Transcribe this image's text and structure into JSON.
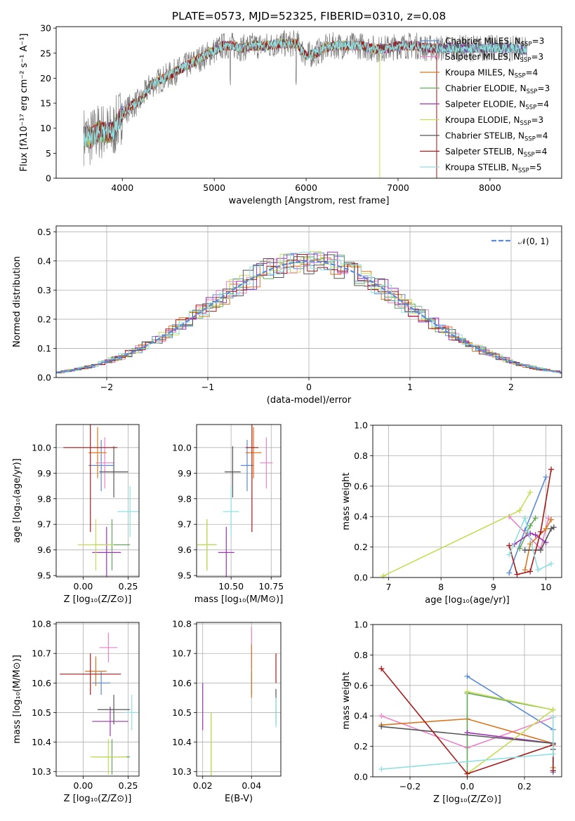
{
  "figure": {
    "title": "PLATE=0573, MJD=52325, FIBERID=0310, z=0.08",
    "series": [
      {
        "name": "Chabrier MILES",
        "nssp": "3",
        "color": "#5b8bd8"
      },
      {
        "name": "Salpeter MILES",
        "nssp": "3",
        "color": "#ee82c8"
      },
      {
        "name": "Kroupa MILES",
        "nssp": "4",
        "color": "#d97721"
      },
      {
        "name": "Chabrier ELODIE",
        "nssp": "3",
        "color": "#62a85a"
      },
      {
        "name": "Salpeter ELODIE",
        "nssp": "4",
        "color": "#9b35b2"
      },
      {
        "name": "Kroupa ELODIE",
        "nssp": "3",
        "color": "#c6dc55"
      },
      {
        "name": "Chabrier STELIB",
        "nssp": "4",
        "color": "#555555"
      },
      {
        "name": "Salpeter STELIB",
        "nssp": "4",
        "color": "#a61c1c"
      },
      {
        "name": "Kroupa STELIB",
        "nssp": "5",
        "color": "#8fe0e0"
      }
    ]
  },
  "chart_data": [
    {
      "id": "spectrum",
      "type": "line",
      "xlabel": "wavelength [Angstrom, rest frame]",
      "ylabel": "Flux [fλ10⁻¹⁷ erg cm⁻² s⁻¹ A⁻¹]",
      "xlim": [
        3280,
        8780
      ],
      "ylim": [
        0,
        30.3
      ],
      "xticks": [
        4000,
        5000,
        6000,
        7000,
        8000
      ],
      "yticks": [
        0,
        5,
        10,
        15,
        20,
        25,
        30
      ],
      "grid": false,
      "legend": "top-right",
      "data_x": [
        3580,
        3650,
        3750,
        3850,
        3900,
        4000,
        4100,
        4200,
        4300,
        4400,
        4500,
        4600,
        4700,
        4800,
        4900,
        5000,
        5100,
        5200,
        5300,
        5400,
        5500,
        5600,
        5700,
        5800,
        5900,
        6000,
        6100,
        6200,
        6300,
        6400,
        6500,
        6600,
        6700,
        6800,
        6900,
        7000,
        7100,
        7200,
        7300,
        7400,
        7500,
        7600,
        7700,
        7800,
        7900,
        8000,
        8100,
        8200,
        8300,
        8400
      ],
      "data_y": [
        8.5,
        8.0,
        9.5,
        9.0,
        9.5,
        13.0,
        14.5,
        15.5,
        18.5,
        19.5,
        20.5,
        21.5,
        22.5,
        23.5,
        24.5,
        25.5,
        26.5,
        26.5,
        26.0,
        26.5,
        26.5,
        26.5,
        27.0,
        26.8,
        27.0,
        24.5,
        25.0,
        26.0,
        26.5,
        26.5,
        26.5,
        26.5,
        26.0,
        25.8,
        26.0,
        26.5,
        26.5,
        26.5,
        26.0,
        26.0,
        26.0,
        26.0,
        26.0,
        26.0,
        26.0,
        26.0,
        26.0,
        26.0,
        25.8,
        25.5
      ],
      "note_dips": [
        3900,
        5175,
        5890,
        6800,
        7420
      ]
    },
    {
      "id": "residuals",
      "type": "line",
      "xlabel": "(data-model)/error",
      "ylabel": "Normed distribution",
      "xlim": [
        -2.5,
        2.5
      ],
      "ylim": [
        0,
        0.52
      ],
      "xticks": [
        -2,
        -1,
        0,
        1,
        2
      ],
      "yticks": [
        0.0,
        0.1,
        0.2,
        0.3,
        0.4,
        0.5
      ],
      "grid": true,
      "legend": "top-right",
      "gaussian_label": "𝒩(0, 1)",
      "bin_width": 0.1
    },
    {
      "id": "age-vs-Z",
      "type": "scatter",
      "xlabel": "Z [log₁₀(Z/Z⊙)]",
      "ylabel": "age  [log₁₀(age/yr)]",
      "xlim": [
        -0.15,
        0.31
      ],
      "ylim": [
        9.495,
        10.09
      ],
      "xticks": [
        0.0,
        0.25
      ],
      "yticks": [
        9.5,
        9.6,
        9.7,
        9.8,
        9.9,
        10.0
      ],
      "points": [
        {
          "x": 0.1,
          "xe": 0.07,
          "y": 9.93,
          "ye": 0.1
        },
        {
          "x": 0.12,
          "xe": 0.05,
          "y": 9.94,
          "ye": 0.1
        },
        {
          "x": 0.08,
          "xe": 0.05,
          "y": 9.98,
          "ye": 0.1
        },
        {
          "x": 0.16,
          "xe": 0.1,
          "y": 9.62,
          "ye": 0.1
        },
        {
          "x": 0.13,
          "xe": 0.08,
          "y": 9.59,
          "ye": 0.1
        },
        {
          "x": 0.07,
          "xe": 0.1,
          "y": 9.62,
          "ye": 0.1
        },
        {
          "x": 0.17,
          "xe": 0.08,
          "y": 9.905,
          "ye": 0.1
        },
        {
          "x": 0.04,
          "xe": 0.15,
          "y": 10.0,
          "ye": 0.33
        },
        {
          "x": 0.26,
          "xe": 0.07,
          "y": 9.75,
          "ye": 0.1
        }
      ]
    },
    {
      "id": "age-vs-mass",
      "type": "scatter",
      "xlabel": "mass [log₁₀(M/M⊙)]",
      "ylabel": "",
      "xlim": [
        10.285,
        10.81
      ],
      "ylim": [
        9.495,
        10.09
      ],
      "xticks": [
        10.5,
        10.75
      ],
      "yticks": [
        9.5,
        9.6,
        9.7,
        9.8,
        9.9,
        10.0
      ],
      "points": [
        {
          "x": 10.6,
          "xe": 0.04,
          "y": 9.93,
          "ye": 0.1
        },
        {
          "x": 10.72,
          "xe": 0.04,
          "y": 9.94,
          "ye": 0.1
        },
        {
          "x": 10.64,
          "xe": 0.05,
          "y": 9.98,
          "ye": 0.1
        },
        {
          "x": 10.35,
          "xe": 0.06,
          "y": 9.62,
          "ye": 0.1
        },
        {
          "x": 10.47,
          "xe": 0.05,
          "y": 9.59,
          "ye": 0.1
        },
        {
          "x": 10.35,
          "xe": 0.06,
          "y": 9.62,
          "ye": 0.1
        },
        {
          "x": 10.51,
          "xe": 0.05,
          "y": 9.905,
          "ye": 0.1
        },
        {
          "x": 10.63,
          "xe": 0.04,
          "y": 10.0,
          "ye": 0.33
        },
        {
          "x": 10.5,
          "xe": 0.05,
          "y": 9.75,
          "ye": 0.1
        }
      ]
    },
    {
      "id": "weight-vs-age",
      "type": "line",
      "xlabel": "age  [log₁₀(age/yr)]",
      "ylabel": "mass weight",
      "xlim": [
        6.7,
        10.3
      ],
      "ylim": [
        0,
        1.0
      ],
      "xticks": [
        7,
        8,
        9,
        10
      ],
      "yticks": [
        0.0,
        0.2,
        0.4,
        0.6,
        0.8,
        1.0
      ],
      "grid": true,
      "series": [
        {
          "x": [
            9.3,
            9.6,
            10.0
          ],
          "y": [
            0.03,
            0.31,
            0.66
          ]
        },
        {
          "x": [
            9.3,
            9.9,
            10.05
          ],
          "y": [
            0.4,
            0.19,
            0.39
          ]
        },
        {
          "x": [
            9.6,
            9.7,
            10.0,
            10.1
          ],
          "y": [
            0.05,
            0.22,
            0.32,
            0.38
          ]
        },
        {
          "x": [
            9.5,
            9.7,
            9.8
          ],
          "y": [
            0.19,
            0.34,
            0.39
          ]
        },
        {
          "x": [
            9.4,
            9.7,
            9.8,
            10.0
          ],
          "y": [
            0.22,
            0.29,
            0.28,
            0.23
          ]
        },
        {
          "x": [
            6.9,
            9.5,
            9.7
          ],
          "y": [
            0.01,
            0.44,
            0.56
          ]
        },
        {
          "x": [
            9.6,
            9.9,
            10.1,
            10.15
          ],
          "y": [
            0.18,
            0.18,
            0.32,
            0.33
          ]
        },
        {
          "x": [
            9.3,
            9.45,
            9.7,
            9.9,
            10.1
          ],
          "y": [
            0.21,
            0.02,
            0.04,
            0.3,
            0.71
          ]
        },
        {
          "x": [
            9.3,
            9.6,
            9.85,
            10.1
          ],
          "y": [
            0.15,
            0.39,
            0.05,
            0.09
          ]
        }
      ]
    },
    {
      "id": "mass-vs-Z",
      "type": "scatter",
      "xlabel": "Z [log₁₀(Z/Z⊙)]",
      "ylabel": "mass [log₁₀(M/M⊙)]",
      "xlim": [
        -0.15,
        0.31
      ],
      "ylim": [
        10.285,
        10.805
      ],
      "xticks": [
        0.0,
        0.25
      ],
      "yticks": [
        10.3,
        10.4,
        10.5,
        10.6,
        10.7,
        10.8
      ],
      "points": [
        {
          "x": 0.1,
          "xe": 0.05,
          "y": 10.6,
          "ye": 0.04
        },
        {
          "x": 0.14,
          "xe": 0.05,
          "y": 10.72,
          "ye": 0.05
        },
        {
          "x": 0.07,
          "xe": 0.06,
          "y": 10.64,
          "ye": 0.05
        },
        {
          "x": 0.16,
          "xe": 0.1,
          "y": 10.35,
          "ye": 0.06
        },
        {
          "x": 0.15,
          "xe": 0.1,
          "y": 10.47,
          "ye": 0.05
        },
        {
          "x": 0.14,
          "xe": 0.1,
          "y": 10.35,
          "ye": 0.06
        },
        {
          "x": 0.17,
          "xe": 0.09,
          "y": 10.51,
          "ye": 0.05
        },
        {
          "x": 0.04,
          "xe": 0.17,
          "y": 10.63,
          "ye": 0.07
        },
        {
          "x": 0.27,
          "xe": 0.04,
          "y": 10.5,
          "ye": 0.06
        }
      ]
    },
    {
      "id": "mass-vs-ebv",
      "type": "scatter",
      "xlabel": "E(B-V)",
      "ylabel": "",
      "xlim": [
        0.0175,
        0.052
      ],
      "ylim": [
        10.285,
        10.805
      ],
      "xticks": [
        0.02,
        0.04
      ],
      "yticks": [
        10.3,
        10.4,
        10.5,
        10.6,
        10.7,
        10.8
      ],
      "points": [
        {
          "x": 0.04,
          "y": 10.6,
          "ye": 0.04
        },
        {
          "x": 0.04,
          "y": 10.72,
          "ye": 0.07
        },
        {
          "x": 0.04,
          "y": 10.64,
          "ye": 0.09
        },
        {
          "x": 0.0235,
          "y": 10.35,
          "ye": 0.15
        },
        {
          "x": 0.02,
          "y": 10.52,
          "ye": 0.08
        },
        {
          "x": 0.0235,
          "y": 10.35,
          "ye": 0.15
        },
        {
          "x": 0.05,
          "y": 10.52,
          "ye": 0.06
        },
        {
          "x": 0.05,
          "y": 10.65,
          "ye": 0.05
        },
        {
          "x": 0.05,
          "y": 10.5,
          "ye": 0.05
        }
      ]
    },
    {
      "id": "weight-vs-Z",
      "type": "line",
      "xlabel": "Z [log₁₀(Z/Z⊙)]",
      "ylabel": "mass weight",
      "xlim": [
        -0.33,
        0.33
      ],
      "ylim": [
        0,
        1.0
      ],
      "xticks": [
        -0.2,
        0.0,
        0.2
      ],
      "yticks": [
        0.0,
        0.2,
        0.4,
        0.6,
        0.8,
        1.0
      ],
      "grid": true,
      "series": [
        {
          "x": [
            0.0,
            0.3,
            0.3
          ],
          "y": [
            0.66,
            0.31,
            0.03
          ]
        },
        {
          "x": [
            -0.3,
            0.0,
            0.3
          ],
          "y": [
            0.4,
            0.19,
            0.39
          ]
        },
        {
          "x": [
            -0.3,
            0.0,
            0.3,
            0.3
          ],
          "y": [
            0.34,
            0.38,
            0.22,
            0.06
          ]
        },
        {
          "x": [
            0.0,
            0.0,
            0.3
          ],
          "y": [
            0.02,
            0.55,
            0.44
          ]
        },
        {
          "x": [
            0.0,
            0.3
          ],
          "y": [
            0.29,
            0.22
          ]
        },
        {
          "x": [
            0.0,
            0.3,
            0.0
          ],
          "y": [
            0.02,
            0.44,
            0.56
          ]
        },
        {
          "x": [
            -0.3,
            0.3,
            0.3
          ],
          "y": [
            0.33,
            0.22,
            0.18
          ]
        },
        {
          "x": [
            -0.3,
            0.0,
            0.3,
            0.3
          ],
          "y": [
            0.71,
            0.02,
            0.21,
            0.04
          ]
        },
        {
          "x": [
            -0.3,
            0.3,
            0.3
          ],
          "y": [
            0.05,
            0.15,
            0.39
          ]
        }
      ]
    }
  ]
}
